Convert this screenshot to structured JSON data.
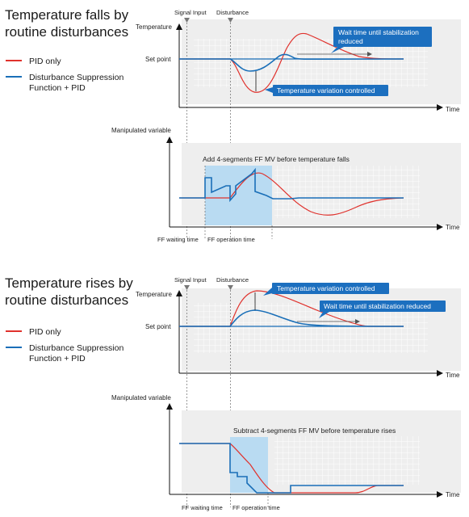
{
  "colors": {
    "pid_red": "#e0322d",
    "dsf_blue": "#1a6fb8",
    "callout_blue": "#1c6fbf",
    "panel_gray": "#eeeeee",
    "ff_zone": "#b9dbf2",
    "grid": "#ffffff"
  },
  "legend": {
    "pid_only": "PID only",
    "dsf_line1": "Disturbance Suppression",
    "dsf_line2": "Function + PID"
  },
  "top": {
    "title_line1": "Temperature falls by",
    "title_line2": "routine disturbances",
    "signal_input": "Signal Input",
    "disturbance": "Disturbance",
    "temperature": "Temperature",
    "set_point": "Set point",
    "time_upper": "Time",
    "callout_wait_line1": "Wait time until stabilization",
    "callout_wait_line2": "reduced",
    "callout_variation": "Temperature variation controlled",
    "manipulated_variable": "Manipulated variable",
    "ff_note": "Add 4-segments FF MV before temperature falls",
    "time_lower": "Time",
    "ff_waiting_time": "FF waiting time",
    "ff_operation_time": "FF operation time"
  },
  "bottom": {
    "title_line1": "Temperature rises by",
    "title_line2": "routine disturbances",
    "signal_input": "Signal Input",
    "disturbance": "Disturbance",
    "temperature": "Temperature",
    "set_point": "Set point",
    "time_upper": "Time",
    "callout_variation": "Temperature variation controlled",
    "callout_wait": "Wait time until stabilization reduced",
    "manipulated_variable": "Manipulated variable",
    "ff_note": "Subtract 4-segments FF MV before temperature rises",
    "time_lower": "Time",
    "ff_waiting_time": "FF waiting time",
    "ff_operation_time": "FF operation time"
  }
}
